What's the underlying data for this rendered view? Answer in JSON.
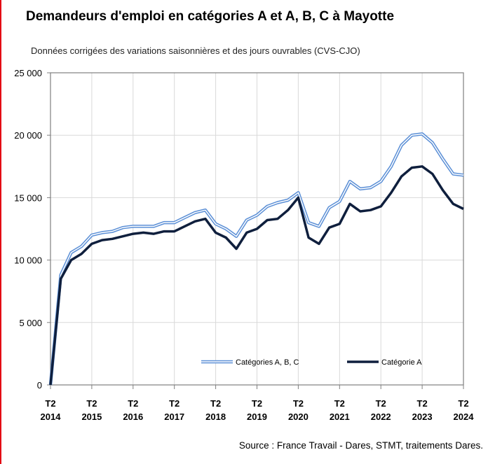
{
  "title": "Demandeurs d'emploi en catégories A et A, B, C à Mayotte",
  "subtitle": "Données corrigées des variations saisonnières et des jours ouvrables (CVS-CJO)",
  "source": "Source : France Travail - Dares, STMT, traitements Dares.",
  "colors": {
    "abc_outer": "#5b8fd6",
    "abc_inner": "#ffffff",
    "a_line": "#0f1f3d",
    "grid": "#d9d9d9",
    "axis": "#7f7f7f",
    "accent_bar": "#e30613"
  },
  "chart_data": {
    "type": "line",
    "ylim": [
      0,
      25000
    ],
    "y_ticks": [
      0,
      5000,
      10000,
      15000,
      20000,
      25000
    ],
    "y_tick_labels": [
      "0",
      "5 000",
      "10 000",
      "15 000",
      "20 000",
      "25 000"
    ],
    "x_tick_labels": [
      {
        "top": "T2",
        "bottom": "2014"
      },
      {
        "top": "T2",
        "bottom": "2015"
      },
      {
        "top": "T2",
        "bottom": "2016"
      },
      {
        "top": "T2",
        "bottom": "2017"
      },
      {
        "top": "T2",
        "bottom": "2018"
      },
      {
        "top": "T2",
        "bottom": "2019"
      },
      {
        "top": "T2",
        "bottom": "2020"
      },
      {
        "top": "T2",
        "bottom": "2021"
      },
      {
        "top": "T2",
        "bottom": "2022"
      },
      {
        "top": "T2",
        "bottom": "2023"
      },
      {
        "top": "T2",
        "bottom": "2024"
      }
    ],
    "x": [
      "2014-T2",
      "2014-T3",
      "2014-T4",
      "2015-T1",
      "2015-T2",
      "2015-T3",
      "2015-T4",
      "2016-T1",
      "2016-T2",
      "2016-T3",
      "2016-T4",
      "2017-T1",
      "2017-T2",
      "2017-T3",
      "2017-T4",
      "2018-T1",
      "2018-T2",
      "2018-T3",
      "2018-T4",
      "2019-T1",
      "2019-T2",
      "2019-T3",
      "2019-T4",
      "2020-T1",
      "2020-T2",
      "2020-T3",
      "2020-T4",
      "2021-T1",
      "2021-T2",
      "2021-T3",
      "2021-T4",
      "2022-T1",
      "2022-T2",
      "2022-T3",
      "2022-T4",
      "2023-T1",
      "2023-T2",
      "2023-T3",
      "2023-T4",
      "2024-T1",
      "2024-T2"
    ],
    "grid": true,
    "legend_position": "bottom-center",
    "series": [
      {
        "name": "Catégories A, B, C",
        "style": "double-line",
        "values": [
          0,
          8800,
          10600,
          11100,
          12000,
          12200,
          12300,
          12600,
          12700,
          12700,
          12700,
          13000,
          13000,
          13400,
          13800,
          14000,
          12900,
          12500,
          11900,
          13200,
          13600,
          14300,
          14600,
          14800,
          15400,
          13000,
          12700,
          14200,
          14700,
          16300,
          15700,
          15800,
          16300,
          17500,
          19200,
          20000,
          20100,
          19400,
          18100,
          16900,
          16800
        ]
      },
      {
        "name": "Catégorie A",
        "style": "thick-dark",
        "values": [
          0,
          8500,
          10000,
          10500,
          11300,
          11600,
          11700,
          11900,
          12100,
          12200,
          12100,
          12300,
          12300,
          12700,
          13100,
          13300,
          12200,
          11800,
          10900,
          12200,
          12500,
          13200,
          13300,
          14000,
          15000,
          11800,
          11300,
          12600,
          12900,
          14500,
          13900,
          14000,
          14300,
          15400,
          16700,
          17400,
          17500,
          16900,
          15600,
          14500,
          14100
        ]
      }
    ]
  }
}
